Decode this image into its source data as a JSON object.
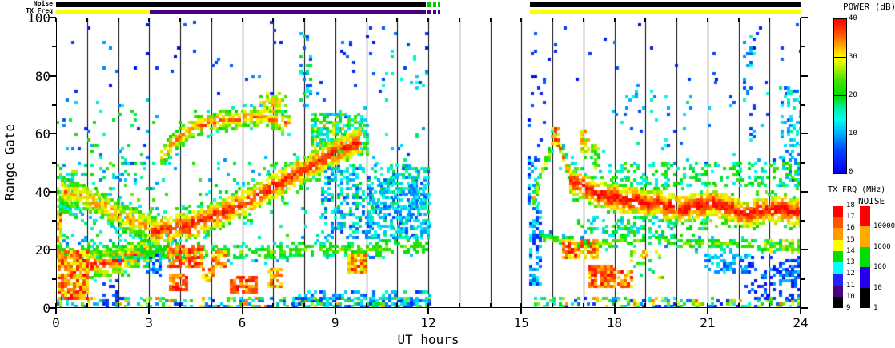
{
  "top_bars": {
    "noise_label": "Noise",
    "txfreq_label": "TX Freq",
    "noise_timeline": [
      {
        "t0": 0,
        "t1": 11.93,
        "color": "#000000"
      },
      {
        "t0": 11.98,
        "t1": 12.1,
        "color": "#00cc00"
      },
      {
        "t0": 12.16,
        "t1": 12.26,
        "color": "#00cc00"
      },
      {
        "t0": 12.32,
        "t1": 12.4,
        "color": "#00cc00"
      },
      {
        "t0": 15.28,
        "t1": 24,
        "color": "#000000"
      }
    ],
    "txfreq_timeline": [
      {
        "t0": 0,
        "t1": 3.02,
        "color": "#ffff00"
      },
      {
        "t0": 3.02,
        "t1": 11.93,
        "color": "#4b0082"
      },
      {
        "t0": 11.98,
        "t1": 12.1,
        "color": "#4b0082"
      },
      {
        "t0": 12.16,
        "t1": 12.26,
        "color": "#4b0082"
      },
      {
        "t0": 12.32,
        "t1": 12.4,
        "color": "#4b0082"
      },
      {
        "t0": 15.28,
        "t1": 24,
        "color": "#ffff00"
      }
    ]
  },
  "legends": {
    "power": {
      "title": "POWER (dB)",
      "ticks": [
        40,
        30,
        20,
        10,
        0
      ],
      "range": [
        0,
        40
      ],
      "separators": [
        10,
        20,
        30
      ]
    },
    "txfrq": {
      "title": "TX FRQ (MHz)",
      "boundary_labels": [
        18,
        17,
        16,
        15,
        14,
        13,
        12,
        11,
        10,
        9
      ],
      "segment_colors": [
        "#ff0000",
        "#ff5500",
        "#ff9900",
        "#ffff00",
        "#00dd00",
        "#00ffff",
        "#2222ff",
        "#4b0082",
        "#000000"
      ]
    },
    "noise": {
      "title": "NOISE",
      "boundary_labels": [
        "10000",
        "1000",
        "100",
        "10",
        "1"
      ],
      "segment_colors": [
        "#ff0000",
        "#ffaa00",
        "#00dd00",
        "#2200ee",
        "#000000"
      ]
    }
  },
  "chart_data": {
    "type": "heatmap",
    "title": "",
    "xlabel": "UT hours",
    "ylabel": "Range Gate",
    "xlim": [
      0,
      24
    ],
    "ylim": [
      0,
      100
    ],
    "xticks_major": [
      0,
      3,
      6,
      9,
      12,
      15,
      18,
      21,
      24
    ],
    "xtick_minor_step": 1,
    "yticks_major": [
      0,
      20,
      40,
      60,
      80,
      100
    ],
    "ytick_minor_step": 10,
    "grid": "vertical-black-line-every-hour",
    "data_gap_ut": [
      12.4,
      15.2
    ],
    "colormap_stops": [
      [
        0,
        "#0000ee"
      ],
      [
        6,
        "#0044ff"
      ],
      [
        10,
        "#00aaff"
      ],
      [
        14,
        "#00ffee"
      ],
      [
        17,
        "#00ee99"
      ],
      [
        20,
        "#00dd00"
      ],
      [
        24,
        "#44e300"
      ],
      [
        27,
        "#aaee00"
      ],
      [
        30,
        "#ffff00"
      ],
      [
        33,
        "#ffaa00"
      ],
      [
        36,
        "#ff5500"
      ],
      [
        40,
        "#ff0000"
      ]
    ],
    "cell_hours": 0.1,
    "cell_gates": 1,
    "features": [
      {
        "type": "patch",
        "t": [
          0,
          3.3
        ],
        "g": [
          22,
          50
        ],
        "density": 0.13,
        "power": [
          8,
          26
        ]
      },
      {
        "type": "patch",
        "t": [
          0,
          3.3
        ],
        "g": [
          50,
          72
        ],
        "density": 0.05,
        "power": [
          4,
          22
        ]
      },
      {
        "type": "patch",
        "t": [
          0,
          11.9
        ],
        "g": [
          74,
          99
        ],
        "density": 0.012,
        "power": [
          1,
          10
        ]
      },
      {
        "type": "patch",
        "t": [
          3.3,
          8.5
        ],
        "g": [
          24,
          52
        ],
        "density": 0.035,
        "power": [
          8,
          24
        ]
      },
      {
        "type": "patch",
        "t": [
          8.2,
          11.9
        ],
        "g": [
          50,
          74
        ],
        "density": 0.03,
        "power": [
          3,
          18
        ]
      },
      {
        "type": "patch",
        "t": [
          7.85,
          8.2
        ],
        "g": [
          70,
          97
        ],
        "density": 0.25,
        "power": [
          5,
          20
        ]
      },
      {
        "type": "patch",
        "t": [
          9.15,
          9.6
        ],
        "g": [
          82,
          93
        ],
        "density": 0.12,
        "power": [
          1,
          9
        ]
      },
      {
        "type": "patch",
        "t": [
          10.4,
          11.9
        ],
        "g": [
          74,
          90
        ],
        "density": 0.06,
        "power": [
          5,
          18
        ]
      },
      {
        "type": "patch",
        "t": [
          0,
          12.0
        ],
        "g": [
          0,
          2.5
        ],
        "density": 0.4,
        "power": [
          2,
          36
        ]
      },
      {
        "type": "patch",
        "t": [
          7.6,
          12.0
        ],
        "g": [
          0,
          5
        ],
        "density": 0.45,
        "power": [
          4,
          18
        ]
      },
      {
        "type": "patch",
        "t": [
          1.5,
          2.05
        ],
        "g": [
          1,
          9
        ],
        "density": 0.35,
        "power": [
          1,
          8
        ]
      },
      {
        "type": "patch",
        "t": [
          2.9,
          3.35
        ],
        "g": [
          11,
          19
        ],
        "density": 0.5,
        "power": [
          2,
          12
        ]
      },
      {
        "type": "patch",
        "t": [
          0,
          0.7
        ],
        "g": [
          32,
          47
        ],
        "density": 0.6,
        "power": [
          12,
          28
        ]
      },
      {
        "type": "patch",
        "t": [
          8.55,
          12.0
        ],
        "g": [
          24,
          49
        ],
        "density": 0.45,
        "power": [
          5,
          20
        ]
      },
      {
        "type": "patch",
        "t": [
          10.0,
          12.0
        ],
        "g": [
          27,
          43
        ],
        "density": 0.3,
        "power": [
          7,
          15
        ]
      },
      {
        "type": "patch",
        "t": [
          8.2,
          10.0
        ],
        "g": [
          53,
          67
        ],
        "density": 0.55,
        "power": [
          10,
          26
        ]
      },
      {
        "type": "patch",
        "t": [
          8.3,
          9.5
        ],
        "g": [
          55,
          64
        ],
        "density": 0.12,
        "power": [
          27,
          35
        ]
      },
      {
        "type": "patch",
        "t": [
          15.3,
          24
        ],
        "g": [
          0,
          2.5
        ],
        "density": 0.4,
        "power": [
          2,
          36
        ]
      },
      {
        "type": "patch",
        "t": [
          15.25,
          15.6
        ],
        "g": [
          8,
          35
        ],
        "density": 0.5,
        "power": [
          2,
          16
        ]
      },
      {
        "type": "patch",
        "t": [
          15.2,
          15.55
        ],
        "g": [
          36,
          52
        ],
        "density": 0.4,
        "power": [
          2,
          14
        ]
      },
      {
        "type": "patch",
        "t": [
          15.2,
          15.75
        ],
        "g": [
          54,
          98
        ],
        "density": 0.07,
        "power": [
          1,
          8
        ]
      },
      {
        "type": "patch",
        "t": [
          15.75,
          24
        ],
        "g": [
          78,
          98
        ],
        "density": 0.012,
        "power": [
          1,
          8
        ]
      },
      {
        "type": "patch",
        "t": [
          17.6,
          24
        ],
        "g": [
          50,
          78
        ],
        "density": 0.025,
        "power": [
          4,
          18
        ]
      },
      {
        "type": "patch",
        "t": [
          18.35,
          19.3
        ],
        "g": [
          68,
          76
        ],
        "density": 0.14,
        "power": [
          6,
          16
        ]
      },
      {
        "type": "patch",
        "t": [
          22.15,
          22.5
        ],
        "g": [
          58,
          96
        ],
        "density": 0.16,
        "power": [
          4,
          16
        ]
      },
      {
        "type": "patch",
        "t": [
          23.35,
          24
        ],
        "g": [
          56,
          76
        ],
        "density": 0.3,
        "power": [
          6,
          18
        ]
      },
      {
        "type": "patch",
        "t": [
          23.3,
          23.95
        ],
        "g": [
          42,
          54
        ],
        "density": 0.35,
        "power": [
          6,
          14
        ]
      },
      {
        "type": "patch",
        "t": [
          16.1,
          17.6
        ],
        "g": [
          45,
          52
        ],
        "density": 0.14,
        "power": [
          10,
          22
        ]
      },
      {
        "type": "patch",
        "t": [
          17.7,
          24
        ],
        "g": [
          42,
          50
        ],
        "density": 0.3,
        "power": [
          12,
          24
        ]
      },
      {
        "type": "patch",
        "t": [
          16.8,
          21
        ],
        "g": [
          25,
          31
        ],
        "density": 0.3,
        "power": [
          10,
          24
        ]
      },
      {
        "type": "patch",
        "t": [
          20.9,
          22.4
        ],
        "g": [
          12,
          18
        ],
        "density": 0.5,
        "power": [
          5,
          16
        ]
      },
      {
        "type": "patch",
        "t": [
          22.2,
          24
        ],
        "g": [
          3,
          17
        ],
        "density": 0.28,
        "power": [
          1,
          10
        ]
      },
      {
        "type": "patch",
        "t": [
          23.3,
          24
        ],
        "g": [
          9,
          16
        ],
        "density": 0.5,
        "power": [
          2,
          12
        ]
      },
      {
        "type": "patch",
        "t": [
          18.5,
          19.6
        ],
        "g": [
          10,
          19
        ],
        "density": 0.22,
        "power": [
          16,
          34
        ]
      },
      {
        "type": "band",
        "pts": [
          [
            0.9,
            14
          ],
          [
            2.0,
            16
          ],
          [
            3.05,
            20
          ]
        ],
        "hw": 4,
        "fringe": 3,
        "density": 0.85,
        "core": 37,
        "edge": 20
      },
      {
        "type": "band",
        "pts": [
          [
            0.15,
            40
          ],
          [
            0.95,
            38
          ],
          [
            2.0,
            32
          ],
          [
            3.1,
            27
          ]
        ],
        "hw": 4,
        "fringe": 2,
        "density": 0.8,
        "core": 34,
        "edge": 19
      },
      {
        "type": "band",
        "pts": [
          [
            3.05,
            26
          ],
          [
            4.5,
            29
          ],
          [
            6.0,
            36
          ],
          [
            7.5,
            45
          ],
          [
            8.8,
            53
          ],
          [
            9.75,
            58
          ]
        ],
        "hw": 4.5,
        "fringe": 3,
        "density": 0.92,
        "core": 39,
        "edge": 22
      },
      {
        "type": "band",
        "pts": [
          [
            3.35,
            53
          ],
          [
            4.3,
            62
          ],
          [
            5.2,
            65
          ],
          [
            6.6,
            66
          ],
          [
            7.45,
            64
          ]
        ],
        "hw": 3,
        "fringe": 2,
        "density": 0.78,
        "core": 35,
        "edge": 19
      },
      {
        "type": "band",
        "pts": [
          [
            0.0,
            19
          ],
          [
            6.0,
            19
          ],
          [
            11.95,
            21
          ]
        ],
        "hw": 2.5,
        "fringe": 1,
        "density": 0.55,
        "core": 24,
        "edge": 15
      },
      {
        "type": "band",
        "pts": [
          [
            15.35,
            38
          ],
          [
            15.75,
            50
          ],
          [
            16.05,
            60
          ]
        ],
        "hw": 2.5,
        "fringe": 1,
        "density": 0.7,
        "core": 30,
        "edge": 14
      },
      {
        "type": "band",
        "pts": [
          [
            16.1,
            58
          ],
          [
            16.45,
            48
          ],
          [
            16.75,
            43
          ]
        ],
        "hw": 2.5,
        "fringe": 1,
        "density": 0.75,
        "core": 34,
        "edge": 17
      },
      {
        "type": "band",
        "pts": [
          [
            15.6,
            24
          ],
          [
            17.0,
            22
          ],
          [
            19.0,
            23
          ],
          [
            21.0,
            22
          ],
          [
            24.0,
            21
          ]
        ],
        "hw": 1.6,
        "fringe": 1,
        "density": 0.65,
        "core": 24,
        "edge": 15
      },
      {
        "type": "band",
        "pts": [
          [
            16.55,
            44
          ],
          [
            17.5,
            39
          ],
          [
            18.3,
            37
          ],
          [
            19.3,
            36
          ],
          [
            20.2,
            34
          ],
          [
            21.2,
            36
          ],
          [
            22.2,
            32
          ],
          [
            23.0,
            34
          ],
          [
            24.0,
            33
          ]
        ],
        "hw": 4,
        "fringe": 4,
        "density": 0.95,
        "core": 40,
        "edge": 25
      },
      {
        "type": "patch",
        "t": [
          0.05,
          0.95
        ],
        "g": [
          3,
          19
        ],
        "density": 0.9,
        "power": [
          28,
          40
        ]
      },
      {
        "type": "patch",
        "t": [
          0,
          0.15
        ],
        "g": [
          22,
          32
        ],
        "density": 0.8,
        "power": [
          26,
          40
        ]
      },
      {
        "type": "patch",
        "t": [
          3.55,
          4.65
        ],
        "g": [
          14,
          21
        ],
        "density": 0.8,
        "power": [
          30,
          40
        ]
      },
      {
        "type": "patch",
        "t": [
          3.65,
          4.15
        ],
        "g": [
          6,
          11
        ],
        "density": 0.8,
        "power": [
          32,
          40
        ]
      },
      {
        "type": "patch",
        "t": [
          4.7,
          5.0
        ],
        "g": [
          9,
          13
        ],
        "density": 0.6,
        "power": [
          28,
          38
        ]
      },
      {
        "type": "patch",
        "t": [
          5.0,
          5.45
        ],
        "g": [
          14,
          19
        ],
        "density": 0.75,
        "power": [
          28,
          38
        ]
      },
      {
        "type": "patch",
        "t": [
          5.6,
          6.45
        ],
        "g": [
          5,
          10
        ],
        "density": 0.8,
        "power": [
          32,
          40
        ]
      },
      {
        "type": "patch",
        "t": [
          6.8,
          7.25
        ],
        "g": [
          7,
          13
        ],
        "density": 0.6,
        "power": [
          26,
          38
        ]
      },
      {
        "type": "patch",
        "t": [
          9.4,
          9.95
        ],
        "g": [
          12,
          18
        ],
        "density": 0.8,
        "power": [
          28,
          40
        ]
      },
      {
        "type": "patch",
        "t": [
          6.55,
          7.35
        ],
        "g": [
          68,
          74
        ],
        "density": 0.5,
        "power": [
          22,
          34
        ]
      },
      {
        "type": "patch",
        "t": [
          15.95,
          16.2
        ],
        "g": [
          56,
          62
        ],
        "density": 0.75,
        "power": [
          30,
          40
        ]
      },
      {
        "type": "patch",
        "t": [
          16.9,
          17.15
        ],
        "g": [
          54,
          61
        ],
        "density": 0.55,
        "power": [
          24,
          36
        ]
      },
      {
        "type": "patch",
        "t": [
          17.25,
          17.55
        ],
        "g": [
          48,
          56
        ],
        "density": 0.5,
        "power": [
          18,
          32
        ]
      },
      {
        "type": "patch",
        "t": [
          16.3,
          17.5
        ],
        "g": [
          17,
          23
        ],
        "density": 0.75,
        "power": [
          28,
          40
        ]
      },
      {
        "type": "patch",
        "t": [
          17.15,
          18.05
        ],
        "g": [
          7,
          14
        ],
        "density": 0.8,
        "power": [
          30,
          40
        ]
      },
      {
        "type": "patch",
        "t": [
          18.1,
          18.6
        ],
        "g": [
          7,
          12
        ],
        "density": 0.7,
        "power": [
          28,
          40
        ]
      },
      {
        "type": "patch",
        "t": [
          22.8,
          24
        ],
        "g": [
          19,
          23
        ],
        "density": 0.45,
        "power": [
          22,
          32
        ]
      }
    ]
  }
}
